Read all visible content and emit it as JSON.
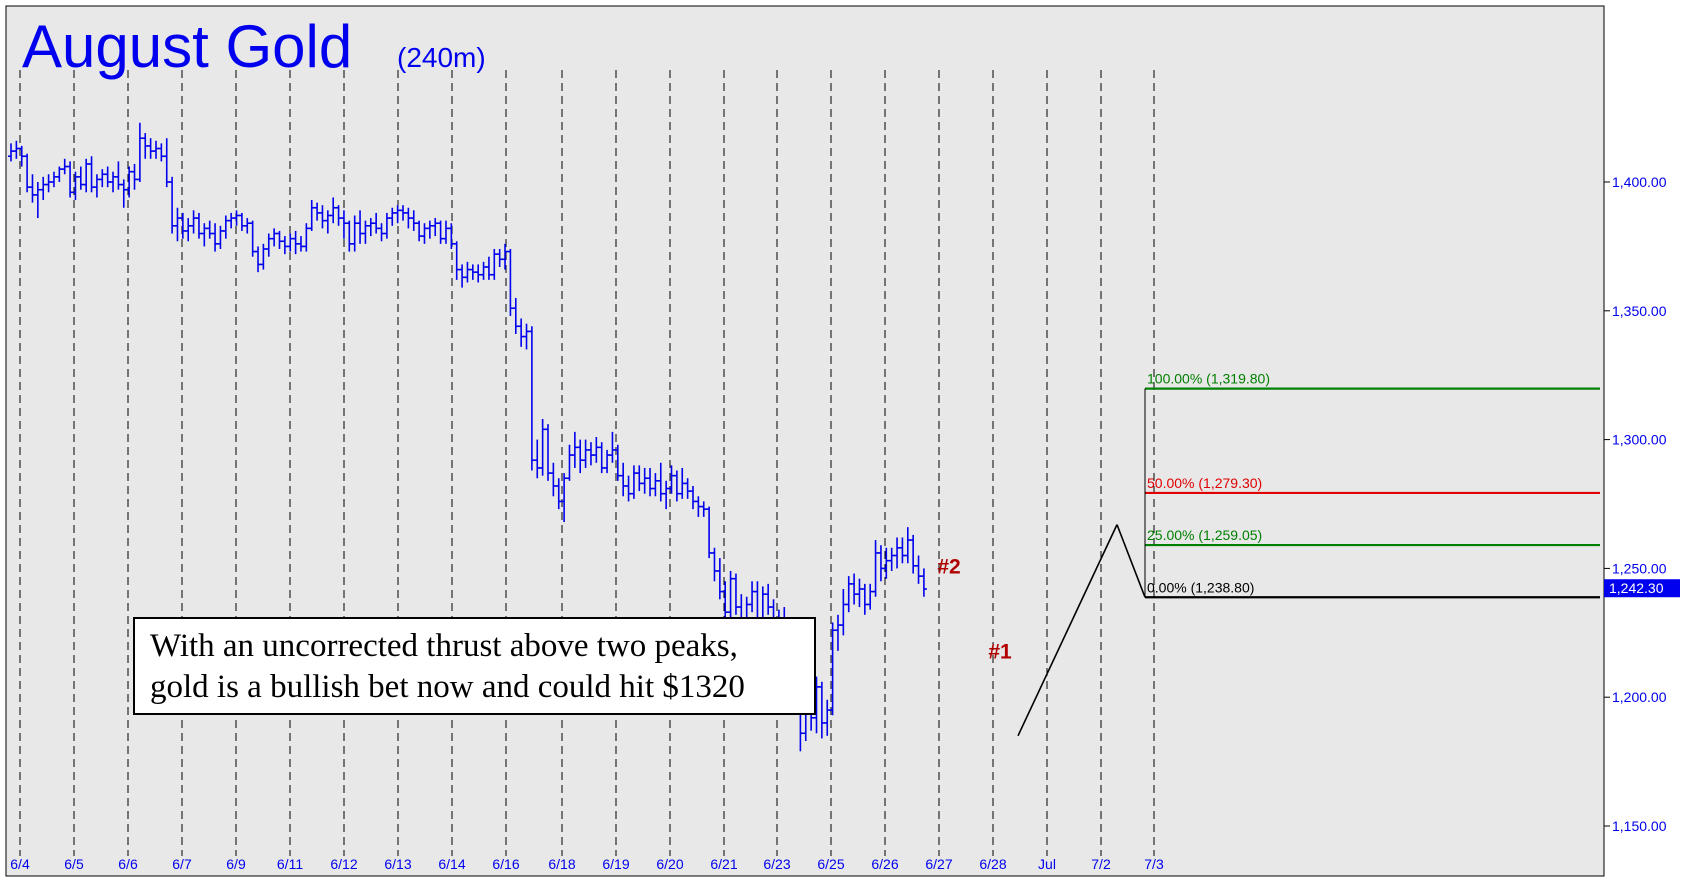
{
  "chart_data": {
    "type": "ohlc",
    "title": "August Gold",
    "subtitle": "(240m)",
    "ylim": [
      1140,
      1450
    ],
    "y_ticks": [
      1150,
      1200,
      1250,
      1300,
      1350,
      1400
    ],
    "y_tick_labels": [
      "1,150.00",
      "1,200.00",
      "1,250.00",
      "1,300.00",
      "1,350.00",
      "1,400.00"
    ],
    "x_tick_labels": [
      "6/4",
      "6/5",
      "6/6",
      "6/7",
      "6/9",
      "6/11",
      "6/12",
      "6/13",
      "6/14",
      "6/16",
      "6/18",
      "6/19",
      "6/20",
      "6/21",
      "6/23",
      "6/25",
      "6/26",
      "6/27",
      "6/28",
      "Jul",
      "7/2",
      "7/3"
    ],
    "grid": "vertical-dashed",
    "colors": {
      "bars": "#0000ee",
      "background": "#e8e8e8",
      "retrace_100": "#008000",
      "retrace_50": "#e00000",
      "retrace_25": "#008000",
      "retrace_0": "#000000",
      "peak_labels": "#b00000",
      "price_tag": "#0000ee"
    },
    "series": [
      {
        "bars": [
          [
            1410,
            1415,
            1408,
            1412
          ],
          [
            1412,
            1416,
            1409,
            1413
          ],
          [
            1413,
            1414,
            1406,
            1410
          ],
          [
            1410,
            1411,
            1396,
            1398
          ],
          [
            1398,
            1403,
            1392,
            1395
          ],
          [
            1395,
            1400,
            1386,
            1397
          ],
          [
            1397,
            1402,
            1393,
            1399
          ],
          [
            1399,
            1403,
            1396,
            1400
          ],
          [
            1400,
            1404,
            1398,
            1402
          ],
          [
            1402,
            1406,
            1400,
            1405
          ],
          [
            1405,
            1409,
            1403,
            1406
          ],
          [
            1406,
            1408,
            1394,
            1396
          ],
          [
            1396,
            1404,
            1393,
            1402
          ],
          [
            1402,
            1406,
            1397,
            1399
          ],
          [
            1399,
            1409,
            1396,
            1407
          ],
          [
            1407,
            1410,
            1396,
            1398
          ],
          [
            1398,
            1403,
            1394,
            1401
          ],
          [
            1401,
            1405,
            1398,
            1403
          ],
          [
            1403,
            1406,
            1398,
            1400
          ],
          [
            1400,
            1404,
            1396,
            1402
          ],
          [
            1402,
            1408,
            1397,
            1399
          ],
          [
            1399,
            1401,
            1390,
            1397
          ],
          [
            1397,
            1406,
            1394,
            1404
          ],
          [
            1404,
            1407,
            1397,
            1401
          ],
          [
            1401,
            1423,
            1400,
            1417
          ],
          [
            1417,
            1419,
            1409,
            1414
          ],
          [
            1414,
            1417,
            1409,
            1412
          ],
          [
            1412,
            1416,
            1409,
            1413
          ],
          [
            1413,
            1415,
            1408,
            1410
          ],
          [
            1410,
            1417,
            1398,
            1400
          ],
          [
            1400,
            1402,
            1380,
            1383
          ],
          [
            1383,
            1390,
            1377,
            1386
          ],
          [
            1386,
            1388,
            1378,
            1381
          ],
          [
            1381,
            1386,
            1377,
            1383
          ],
          [
            1383,
            1389,
            1380,
            1386
          ],
          [
            1386,
            1388,
            1378,
            1380
          ],
          [
            1380,
            1384,
            1375,
            1382
          ],
          [
            1382,
            1385,
            1378,
            1380
          ],
          [
            1380,
            1384,
            1373,
            1376
          ],
          [
            1376,
            1383,
            1374,
            1381
          ],
          [
            1381,
            1387,
            1378,
            1385
          ],
          [
            1385,
            1388,
            1382,
            1386
          ],
          [
            1386,
            1389,
            1383,
            1387
          ],
          [
            1387,
            1388,
            1381,
            1383
          ],
          [
            1383,
            1386,
            1380,
            1384
          ],
          [
            1384,
            1385,
            1371,
            1373
          ],
          [
            1373,
            1375,
            1365,
            1368
          ],
          [
            1368,
            1376,
            1366,
            1374
          ],
          [
            1374,
            1380,
            1371,
            1378
          ],
          [
            1378,
            1382,
            1375,
            1380
          ],
          [
            1380,
            1381,
            1374,
            1377
          ],
          [
            1377,
            1379,
            1372,
            1375
          ],
          [
            1375,
            1380,
            1373,
            1378
          ],
          [
            1378,
            1381,
            1372,
            1376
          ],
          [
            1376,
            1379,
            1373,
            1375
          ],
          [
            1375,
            1384,
            1373,
            1382
          ],
          [
            1382,
            1393,
            1381,
            1390
          ],
          [
            1390,
            1392,
            1385,
            1388
          ],
          [
            1388,
            1391,
            1382,
            1385
          ],
          [
            1385,
            1389,
            1380,
            1387
          ],
          [
            1387,
            1394,
            1384,
            1390
          ],
          [
            1390,
            1391,
            1383,
            1386
          ],
          [
            1386,
            1389,
            1378,
            1384
          ],
          [
            1384,
            1385,
            1373,
            1376
          ],
          [
            1376,
            1387,
            1373,
            1384
          ],
          [
            1384,
            1389,
            1376,
            1380
          ],
          [
            1380,
            1385,
            1376,
            1383
          ],
          [
            1383,
            1386,
            1379,
            1384
          ],
          [
            1384,
            1388,
            1380,
            1382
          ],
          [
            1382,
            1384,
            1377,
            1380
          ],
          [
            1380,
            1388,
            1378,
            1386
          ],
          [
            1386,
            1390,
            1383,
            1388
          ],
          [
            1388,
            1391,
            1384,
            1389
          ],
          [
            1389,
            1391,
            1385,
            1388
          ],
          [
            1388,
            1390,
            1382,
            1386
          ],
          [
            1386,
            1389,
            1381,
            1384
          ],
          [
            1384,
            1385,
            1377,
            1379
          ],
          [
            1379,
            1384,
            1376,
            1382
          ],
          [
            1382,
            1385,
            1378,
            1383
          ],
          [
            1383,
            1386,
            1379,
            1384
          ],
          [
            1384,
            1385,
            1376,
            1378
          ],
          [
            1378,
            1385,
            1376,
            1382
          ],
          [
            1382,
            1384,
            1374,
            1376
          ],
          [
            1376,
            1377,
            1362,
            1366
          ],
          [
            1366,
            1368,
            1359,
            1363
          ],
          [
            1363,
            1369,
            1361,
            1366
          ],
          [
            1366,
            1368,
            1362,
            1365
          ],
          [
            1365,
            1368,
            1361,
            1364
          ],
          [
            1364,
            1369,
            1362,
            1367
          ],
          [
            1367,
            1371,
            1362,
            1364
          ],
          [
            1364,
            1374,
            1362,
            1372
          ],
          [
            1372,
            1374,
            1367,
            1370
          ],
          [
            1370,
            1376,
            1366,
            1373
          ],
          [
            1373,
            1374,
            1348,
            1351
          ],
          [
            1351,
            1355,
            1341,
            1344
          ],
          [
            1344,
            1347,
            1336,
            1340
          ],
          [
            1340,
            1345,
            1335,
            1342
          ],
          [
            1342,
            1344,
            1288,
            1292
          ],
          [
            1292,
            1300,
            1285,
            1289
          ],
          [
            1289,
            1308,
            1286,
            1304
          ],
          [
            1304,
            1306,
            1284,
            1287
          ],
          [
            1287,
            1291,
            1278,
            1282
          ],
          [
            1282,
            1285,
            1273,
            1276
          ],
          [
            1276,
            1287,
            1268,
            1285
          ],
          [
            1285,
            1298,
            1284,
            1294
          ],
          [
            1294,
            1303,
            1289,
            1297
          ],
          [
            1297,
            1300,
            1287,
            1292
          ],
          [
            1292,
            1300,
            1289,
            1296
          ],
          [
            1296,
            1299,
            1290,
            1294
          ],
          [
            1294,
            1301,
            1291,
            1297
          ],
          [
            1297,
            1299,
            1287,
            1289
          ],
          [
            1289,
            1296,
            1287,
            1294
          ],
          [
            1294,
            1303,
            1291,
            1296
          ],
          [
            1296,
            1298,
            1284,
            1286
          ],
          [
            1286,
            1291,
            1278,
            1282
          ],
          [
            1282,
            1286,
            1276,
            1279
          ],
          [
            1279,
            1290,
            1277,
            1287
          ],
          [
            1287,
            1290,
            1280,
            1283
          ],
          [
            1283,
            1289,
            1279,
            1285
          ],
          [
            1285,
            1289,
            1278,
            1281
          ],
          [
            1281,
            1287,
            1278,
            1284
          ],
          [
            1284,
            1291,
            1276,
            1279
          ],
          [
            1279,
            1284,
            1273,
            1281
          ],
          [
            1281,
            1290,
            1279,
            1286
          ],
          [
            1286,
            1288,
            1276,
            1279
          ],
          [
            1279,
            1289,
            1277,
            1283
          ],
          [
            1283,
            1285,
            1277,
            1280
          ],
          [
            1280,
            1282,
            1273,
            1276
          ],
          [
            1276,
            1278,
            1270,
            1274
          ],
          [
            1274,
            1276,
            1270,
            1273
          ],
          [
            1273,
            1274,
            1254,
            1256
          ],
          [
            1256,
            1258,
            1245,
            1249
          ],
          [
            1249,
            1254,
            1238,
            1241
          ],
          [
            1241,
            1245,
            1228,
            1233
          ],
          [
            1233,
            1249,
            1225,
            1246
          ],
          [
            1246,
            1248,
            1232,
            1235
          ],
          [
            1235,
            1240,
            1225,
            1230
          ],
          [
            1230,
            1239,
            1222,
            1236
          ],
          [
            1236,
            1245,
            1233,
            1241
          ],
          [
            1241,
            1245,
            1226,
            1230
          ],
          [
            1230,
            1243,
            1227,
            1240
          ],
          [
            1240,
            1244,
            1232,
            1235
          ],
          [
            1235,
            1238,
            1222,
            1225
          ],
          [
            1225,
            1234,
            1223,
            1230
          ],
          [
            1230,
            1235,
            1219,
            1223
          ],
          [
            1223,
            1225,
            1206,
            1209
          ],
          [
            1209,
            1214,
            1198,
            1202
          ],
          [
            1202,
            1205,
            1179,
            1186
          ],
          [
            1186,
            1210,
            1183,
            1205
          ],
          [
            1205,
            1212,
            1187,
            1192
          ],
          [
            1192,
            1208,
            1186,
            1204
          ],
          [
            1204,
            1206,
            1184,
            1190
          ],
          [
            1190,
            1199,
            1185,
            1195
          ],
          [
            1195,
            1229,
            1193,
            1226
          ],
          [
            1226,
            1232,
            1218,
            1228
          ],
          [
            1228,
            1242,
            1224,
            1236
          ],
          [
            1236,
            1247,
            1233,
            1244
          ],
          [
            1244,
            1248,
            1236,
            1240
          ],
          [
            1240,
            1246,
            1235,
            1242
          ],
          [
            1242,
            1244,
            1232,
            1236
          ],
          [
            1236,
            1244,
            1234,
            1241
          ],
          [
            1241,
            1261,
            1239,
            1256
          ],
          [
            1256,
            1259,
            1245,
            1250
          ],
          [
            1250,
            1258,
            1246,
            1253
          ],
          [
            1253,
            1258,
            1249,
            1255
          ],
          [
            1255,
            1262,
            1250,
            1258
          ],
          [
            1258,
            1262,
            1252,
            1255
          ],
          [
            1255,
            1266,
            1252,
            1261
          ],
          [
            1261,
            1263,
            1248,
            1251
          ],
          [
            1251,
            1255,
            1244,
            1247
          ],
          [
            1247,
            1250,
            1239,
            1242
          ]
        ]
      }
    ],
    "x_start": "6/4",
    "x_end": "7/3",
    "retracement": {
      "levels": [
        {
          "label": "100.00% (1,319.80)",
          "value": 1319.8
        },
        {
          "label": "50.00% (1,279.30)",
          "value": 1279.3
        },
        {
          "label": "25.00% (1,259.05)",
          "value": 1259.05
        },
        {
          "label": "0.00% (1,238.80)",
          "value": 1238.8
        }
      ]
    },
    "last_price": {
      "label": "1,242.30",
      "value": 1242.3
    },
    "peaks": [
      {
        "label": "#2",
        "date": "6/27",
        "value": 1245
      },
      {
        "label": "#1",
        "date": "6/28",
        "value": 1212
      }
    ],
    "annotation": {
      "line1": "With an uncorrected thrust above two peaks,",
      "line2": "gold is a bullish bet now and could hit $1320"
    }
  }
}
